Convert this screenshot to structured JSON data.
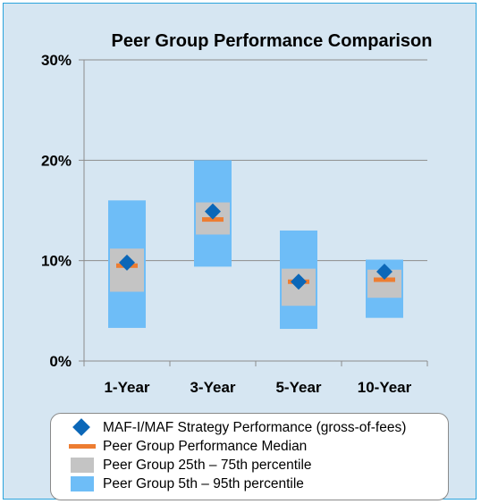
{
  "chart_data": {
    "type": "bar",
    "title": "Peer Group Performance Comparison",
    "categories": [
      "1-Year",
      "3-Year",
      "5-Year",
      "10-Year"
    ],
    "ylim": [
      0,
      30
    ],
    "yticks": [
      "0%",
      "10%",
      "20%",
      "30%"
    ],
    "grid": true,
    "legend_position": "bottom",
    "series": [
      {
        "name": "MAF-I/MAF Strategy Performance (gross-of-fees)",
        "values": [
          9.8,
          14.9,
          7.9,
          8.9
        ]
      },
      {
        "name": "Peer Group Performance Median",
        "values": [
          9.5,
          14.1,
          7.9,
          8.1
        ]
      },
      {
        "name": "Peer Group 25th – 75th percentile",
        "low": [
          6.9,
          12.6,
          5.5,
          6.3
        ],
        "high": [
          11.2,
          15.8,
          9.2,
          9.1
        ]
      },
      {
        "name": "Peer Group 5th – 95th percentile",
        "low": [
          3.3,
          9.4,
          3.2,
          4.3
        ],
        "high": [
          16.0,
          20.0,
          13.0,
          10.1
        ]
      }
    ],
    "colors": {
      "strategy": "#0b67b8",
      "median": "#ed7d31",
      "iqr": "#c4c4c4",
      "range": "#6ebdf7",
      "grid": "#8c8c8c"
    }
  }
}
